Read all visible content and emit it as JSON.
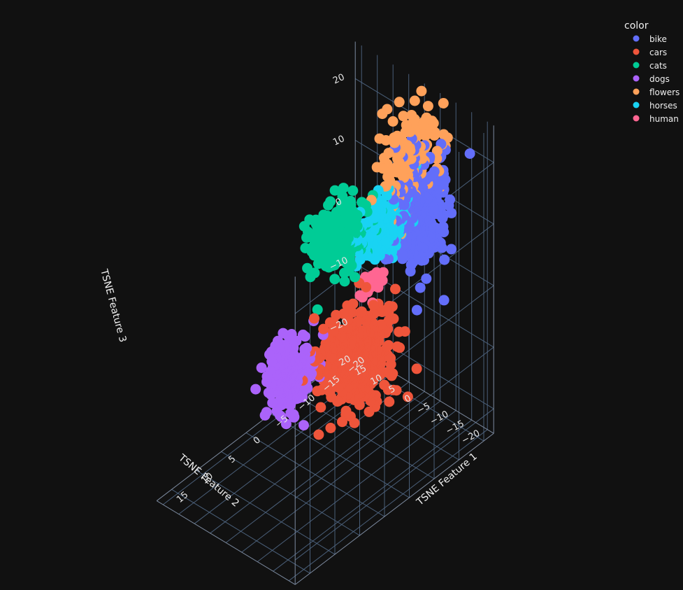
{
  "chart_data": {
    "type": "scatter",
    "title": "",
    "legend": {
      "title": "color",
      "placement": "top-right",
      "entries": [
        "bike",
        "cars",
        "cats",
        "dogs",
        "flowers",
        "horses",
        "human"
      ]
    },
    "axes": {
      "x": {
        "title": "TSNE Feature 1",
        "ticks": [
          -20,
          -15,
          -10,
          -5,
          0,
          5,
          10,
          15
        ],
        "range": [
          -22,
          18
        ]
      },
      "y": {
        "title": "TSNE Feature 2",
        "ticks": [
          -20,
          -15,
          -10,
          -5,
          0,
          5,
          10,
          15,
          20
        ],
        "range": [
          -22,
          22
        ]
      },
      "z": {
        "title": "TSNE Feature 3",
        "ticks": [
          -20,
          -10,
          0,
          10,
          20
        ],
        "range": [
          -24,
          26
        ]
      }
    },
    "series": [
      {
        "name": "bike",
        "color": "#636efa",
        "cluster": {
          "center": [
            -15,
            -10,
            12
          ],
          "spread": [
            2.2,
            2.4,
            4.5
          ],
          "points": 260
        }
      },
      {
        "name": "cars",
        "color": "#ef553b",
        "cluster": {
          "center": [
            -8,
            0,
            -10
          ],
          "spread": [
            3.0,
            3.5,
            3.5
          ],
          "points": 440
        }
      },
      {
        "name": "cats",
        "color": "#00cc96",
        "cluster": {
          "center": [
            3,
            -12,
            20
          ],
          "spread": [
            2.4,
            2.0,
            2.5
          ],
          "points": 250
        }
      },
      {
        "name": "dogs",
        "color": "#ab63fa",
        "cluster": {
          "center": [
            8,
            -4,
            -2
          ],
          "spread": [
            2.0,
            2.0,
            2.8
          ],
          "points": 230
        }
      },
      {
        "name": "flowers",
        "color": "#ffa15a",
        "cluster": {
          "center": [
            -10,
            -14,
            26
          ],
          "spread": [
            3.0,
            2.2,
            3.5
          ],
          "points": 150
        }
      },
      {
        "name": "horses",
        "color": "#19d3f3",
        "cluster": {
          "center": [
            -6,
            -12,
            16
          ],
          "spread": [
            2.0,
            2.0,
            2.5
          ],
          "points": 150
        }
      },
      {
        "name": "human",
        "color": "#ff6692",
        "cluster": {
          "center": [
            -9,
            -3,
            2
          ],
          "spread": [
            1.2,
            1.2,
            1.2
          ],
          "points": 22
        }
      }
    ]
  }
}
